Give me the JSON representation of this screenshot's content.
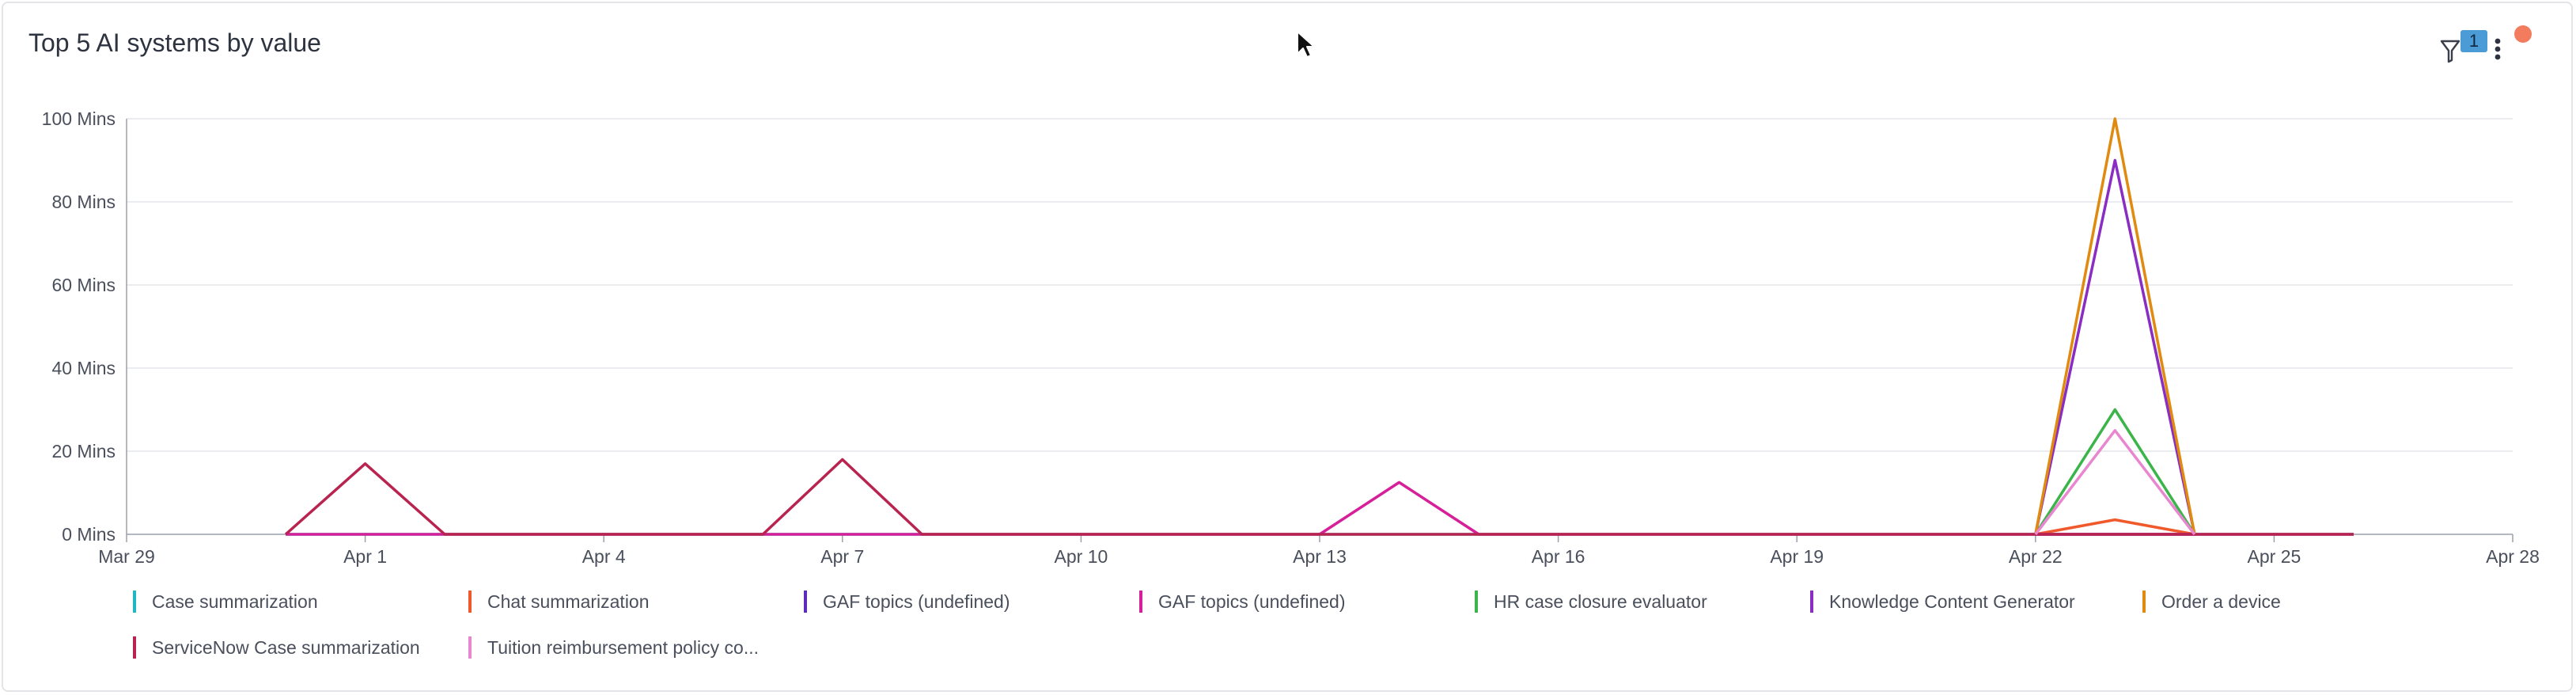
{
  "card": {
    "title": "Top 5 AI systems by value",
    "filter_count": "1",
    "icons": {
      "filter": "filter-icon",
      "more": "more-vertical-icon",
      "notification": "notification-dot-icon",
      "cursor": "mouse-cursor-icon"
    },
    "colors": {
      "notification": "#f37b5e",
      "badge": "#4a9bd6"
    }
  },
  "chart_data": {
    "type": "line",
    "title": "Top 5 AI systems by value",
    "xlabel": "",
    "ylabel": "",
    "xlim": [
      "Mar 29",
      "Apr 28"
    ],
    "ylim": [
      0,
      100
    ],
    "y_unit": "Mins",
    "x_ticks": [
      "Mar 29",
      "Apr 1",
      "Apr 4",
      "Apr 7",
      "Apr 10",
      "Apr 13",
      "Apr 16",
      "Apr 19",
      "Apr 22",
      "Apr 25",
      "Apr 28"
    ],
    "y_ticks": [
      "0 Mins",
      "20 Mins",
      "40 Mins",
      "60 Mins",
      "80 Mins",
      "100 Mins"
    ],
    "grid": true,
    "legend_position": "bottom",
    "x": [
      "Mar 29",
      "Mar 30",
      "Mar 31",
      "Apr 1",
      "Apr 2",
      "Apr 3",
      "Apr 4",
      "Apr 5",
      "Apr 6",
      "Apr 7",
      "Apr 8",
      "Apr 9",
      "Apr 10",
      "Apr 11",
      "Apr 12",
      "Apr 13",
      "Apr 14",
      "Apr 15",
      "Apr 16",
      "Apr 17",
      "Apr 18",
      "Apr 19",
      "Apr 20",
      "Apr 21",
      "Apr 22",
      "Apr 23",
      "Apr 24",
      "Apr 25",
      "Apr 26"
    ],
    "series": [
      {
        "name": "Case summarization",
        "color": "#1fb6c6",
        "values": [
          null,
          null,
          0,
          0,
          0,
          0,
          0,
          0,
          0,
          0,
          0,
          0,
          0,
          0,
          0,
          0,
          0,
          0,
          0,
          0,
          0,
          0,
          0,
          0,
          0,
          0,
          0,
          0,
          0
        ]
      },
      {
        "name": "Chat summarization",
        "color": "#f0592b",
        "values": [
          null,
          null,
          null,
          null,
          null,
          null,
          null,
          null,
          null,
          null,
          null,
          null,
          null,
          null,
          null,
          null,
          null,
          null,
          null,
          null,
          null,
          null,
          null,
          null,
          0,
          3.5,
          0,
          null,
          null
        ]
      },
      {
        "name": "GAF topics (undefined)",
        "color": "#5e2bbd",
        "values": [
          null,
          null,
          null,
          null,
          null,
          null,
          null,
          null,
          null,
          null,
          null,
          null,
          null,
          null,
          null,
          null,
          null,
          null,
          null,
          null,
          null,
          null,
          null,
          null,
          0,
          0,
          0,
          null,
          null
        ]
      },
      {
        "name": "GAF topics (undefined)",
        "color": "#d61f99",
        "values": [
          null,
          null,
          0,
          0,
          0,
          0,
          0,
          0,
          0,
          0,
          0,
          0,
          0,
          0,
          0,
          0,
          12.5,
          0,
          0,
          0,
          0,
          0,
          0,
          0,
          0,
          0,
          0,
          0,
          0
        ]
      },
      {
        "name": "HR case closure evaluator",
        "color": "#3bb54a",
        "values": [
          null,
          null,
          null,
          null,
          null,
          null,
          null,
          null,
          null,
          null,
          null,
          null,
          null,
          null,
          null,
          null,
          null,
          null,
          null,
          null,
          null,
          null,
          null,
          null,
          0,
          30,
          0,
          null,
          null
        ]
      },
      {
        "name": "Knowledge Content Generator",
        "color": "#8a2dc2",
        "values": [
          null,
          null,
          null,
          null,
          null,
          null,
          null,
          null,
          null,
          null,
          null,
          null,
          null,
          null,
          null,
          null,
          null,
          null,
          null,
          null,
          null,
          null,
          null,
          null,
          0,
          90,
          0,
          null,
          null
        ]
      },
      {
        "name": "Order a device",
        "color": "#e08a10",
        "values": [
          null,
          null,
          null,
          null,
          null,
          null,
          null,
          null,
          null,
          null,
          null,
          null,
          null,
          null,
          null,
          null,
          null,
          null,
          null,
          null,
          null,
          null,
          null,
          null,
          0,
          100,
          0,
          null,
          null
        ]
      },
      {
        "name": "ServiceNow Case summarization",
        "color": "#b8244f",
        "values": [
          null,
          null,
          0,
          17,
          0,
          0,
          0,
          0,
          0,
          18,
          0,
          0,
          0,
          0,
          0,
          0,
          0,
          0,
          0,
          0,
          0,
          0,
          0,
          0,
          0,
          0,
          0,
          0,
          0
        ]
      },
      {
        "name": "Tuition reimbursement policy co...",
        "color": "#e887cf",
        "values": [
          null,
          null,
          null,
          null,
          null,
          null,
          null,
          null,
          null,
          null,
          null,
          null,
          null,
          null,
          null,
          null,
          null,
          null,
          null,
          null,
          null,
          null,
          null,
          null,
          0,
          25,
          0,
          null,
          null
        ]
      }
    ]
  }
}
